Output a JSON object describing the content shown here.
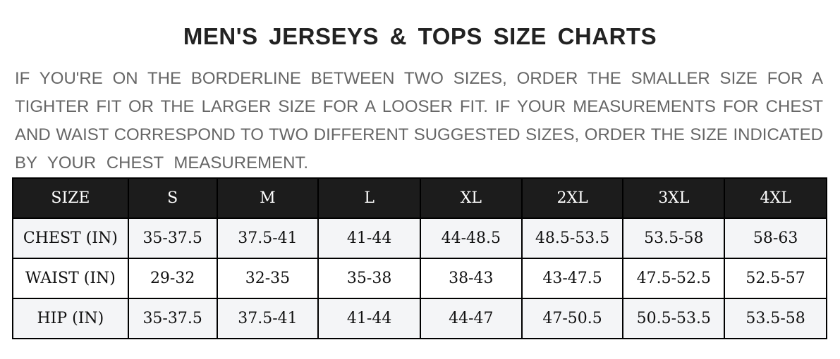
{
  "title": "MEN'S JERSEYS & TOPS SIZE CHARTS",
  "note_lines": [
    "IF YOU'RE ON THE BORDERLINE BETWEEN TWO SIZES, ORDER THE SMALLER SIZE FOR A",
    "TIGHTER FIT OR THE LARGER SIZE FOR A LOOSER FIT. IF YOUR MEASUREMENTS FOR CHEST",
    "AND WAIST CORRESPOND TO TWO DIFFERENT SUGGESTED SIZES, ORDER THE SIZE INDICATED",
    "BY YOUR CHEST MEASUREMENT."
  ],
  "table": {
    "headers": [
      "SIZE",
      "S",
      "M",
      "L",
      "XL",
      "2XL",
      "3XL",
      "4XL"
    ],
    "rows": [
      [
        "CHEST (IN)",
        "35-37.5",
        "37.5-41",
        "41-44",
        "44-48.5",
        "48.5-53.5",
        "53.5-58",
        "58-63"
      ],
      [
        "WAIST (IN)",
        "29-32",
        "32-35",
        "35-38",
        "38-43",
        "43-47.5",
        "47.5-52.5",
        "52.5-57"
      ],
      [
        "HIP (IN)",
        "35-37.5",
        "37.5-41",
        "41-44",
        "44-47",
        "47-50.5",
        "50.5-53.5",
        "53.5-58"
      ]
    ]
  },
  "colors": {
    "header_bg": "#1c1c1c",
    "row_alt_bg": "#f4f5f7",
    "note_text": "#666666"
  }
}
